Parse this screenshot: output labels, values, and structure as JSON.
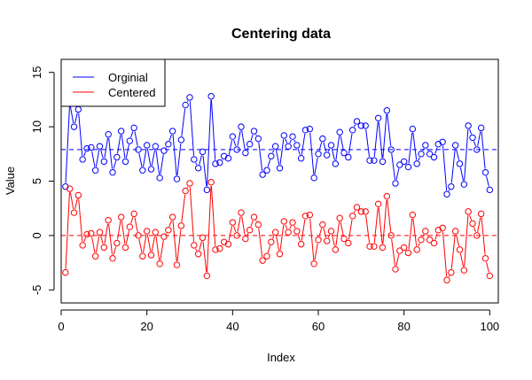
{
  "chart_data": {
    "type": "line",
    "title": "Centering data",
    "xlabel": "Index",
    "ylabel": "Value",
    "xlim": [
      0,
      102
    ],
    "ylim": [
      -6.2,
      16.2
    ],
    "x_ticks": [
      0,
      20,
      40,
      60,
      80,
      100
    ],
    "y_ticks": [
      -5,
      0,
      5,
      10,
      15
    ],
    "legend_position": "top-left",
    "reference_lines": [
      {
        "series": "Orginial",
        "y": 7.9,
        "style": "dashed"
      },
      {
        "series": "Centered",
        "y": 0,
        "style": "dashed"
      }
    ],
    "series": [
      {
        "name": "Orginial",
        "color": "#0000ff",
        "values": [
          4.5,
          12.2,
          10.0,
          11.6,
          7.0,
          8.0,
          8.1,
          6.0,
          8.2,
          6.8,
          9.3,
          5.8,
          7.2,
          9.6,
          6.8,
          8.7,
          9.9,
          7.9,
          6.0,
          8.3,
          6.1,
          8.2,
          5.3,
          7.8,
          8.4,
          9.6,
          5.2,
          8.8,
          12.0,
          12.7,
          7.0,
          6.2,
          7.7,
          4.2,
          12.8,
          6.6,
          6.7,
          7.3,
          7.1,
          9.1,
          7.9,
          10.0,
          7.6,
          8.4,
          9.6,
          8.9,
          5.6,
          6.0,
          7.3,
          8.2,
          6.2,
          9.2,
          8.2,
          9.1,
          8.3,
          7.1,
          9.7,
          9.8,
          5.3,
          7.5,
          8.9,
          7.4,
          8.3,
          6.6,
          9.5,
          7.6,
          7.2,
          9.7,
          10.5,
          10.1,
          10.1,
          6.9,
          6.9,
          10.8,
          6.8,
          11.5,
          7.9,
          4.8,
          6.5,
          6.8,
          6.3,
          9.8,
          6.6,
          7.5,
          8.3,
          7.5,
          7.2,
          8.4,
          8.6,
          3.8,
          4.5,
          8.3,
          6.6,
          4.7,
          10.1,
          9.0,
          7.9,
          9.9,
          5.8,
          4.2
        ]
      },
      {
        "name": "Centered",
        "color": "#ff0000",
        "values": [
          -3.4,
          4.3,
          2.1,
          3.7,
          -0.9,
          0.1,
          0.2,
          -1.9,
          0.3,
          -1.1,
          1.4,
          -2.1,
          -0.7,
          1.7,
          -1.1,
          0.8,
          2.0,
          0.0,
          -1.9,
          0.4,
          -1.8,
          0.3,
          -2.6,
          -0.1,
          0.5,
          1.7,
          -2.7,
          0.9,
          4.1,
          4.8,
          -0.9,
          -1.7,
          -0.2,
          -3.7,
          4.9,
          -1.3,
          -1.2,
          -0.6,
          -0.8,
          1.2,
          0.0,
          2.1,
          -0.3,
          0.5,
          1.7,
          1.0,
          -2.3,
          -1.9,
          -0.6,
          0.3,
          -1.7,
          1.3,
          0.3,
          1.2,
          0.4,
          -0.8,
          1.8,
          1.9,
          -2.6,
          -0.4,
          1.0,
          -0.5,
          0.4,
          -1.3,
          1.6,
          -0.3,
          -0.7,
          1.8,
          2.6,
          2.2,
          2.2,
          -1.0,
          -1.0,
          2.9,
          -1.1,
          3.6,
          0.0,
          -3.1,
          -1.4,
          -1.1,
          -1.6,
          1.9,
          -1.3,
          -0.4,
          0.4,
          -0.4,
          -0.7,
          0.5,
          0.7,
          -4.1,
          -3.4,
          0.4,
          -1.3,
          -3.2,
          2.2,
          1.1,
          0.0,
          2.0,
          -2.1,
          -3.7
        ]
      }
    ]
  }
}
